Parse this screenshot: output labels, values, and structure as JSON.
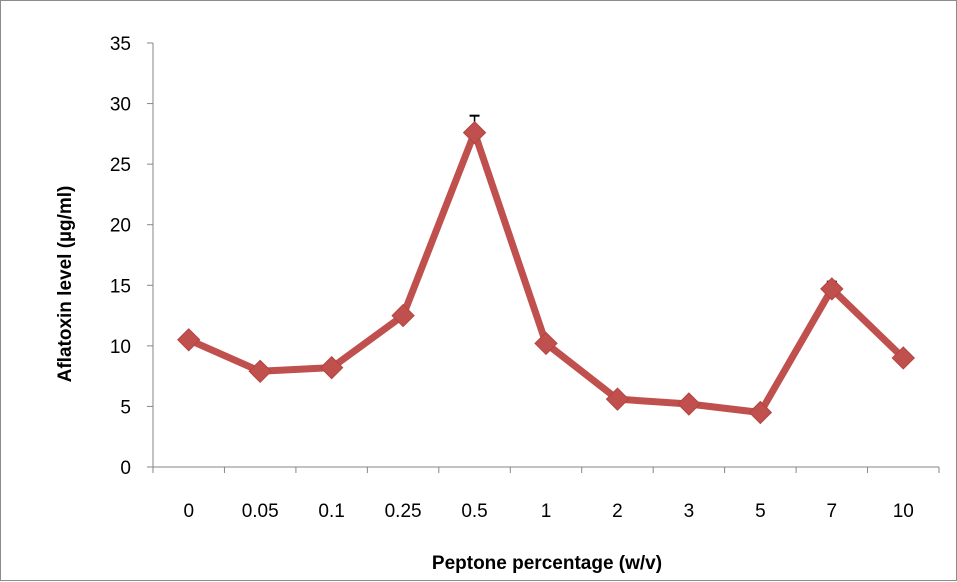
{
  "chart_data": {
    "type": "line",
    "title": "",
    "xlabel": "Peptone percentage (w/v)",
    "ylabel": "Aflatoxin level (µg/ml)",
    "categories": [
      "0",
      "0.05",
      "0.1",
      "0.25",
      "0.5",
      "1",
      "2",
      "3",
      "5",
      "7",
      "10"
    ],
    "series": [
      {
        "values": [
          10.5,
          7.9,
          8.2,
          12.5,
          27.6,
          10.2,
          5.6,
          5.2,
          4.5,
          14.7,
          9.0
        ],
        "error": [
          0,
          0,
          0,
          0,
          1.4,
          0,
          0,
          0,
          0,
          0.6,
          0
        ],
        "color": "#c0504d"
      }
    ],
    "ylim": [
      0,
      35
    ],
    "yticks": [
      0,
      5,
      10,
      15,
      20,
      25,
      30,
      35
    ],
    "grid": false,
    "legend": "none"
  }
}
